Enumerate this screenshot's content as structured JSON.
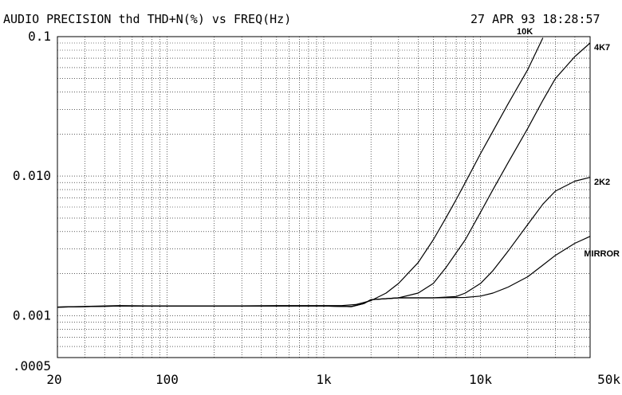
{
  "header": {
    "title": "AUDIO PRECISION thd THD+N(%) vs FREQ(Hz)",
    "timestamp": "27 APR 93 18:28:57"
  },
  "chart_data": {
    "type": "line",
    "title": "AUDIO PRECISION thd THD+N(%) vs FREQ(Hz)",
    "xlabel": "",
    "ylabel": "",
    "x_scale": "log",
    "y_scale": "log",
    "xlim": [
      20,
      50000
    ],
    "ylim": [
      0.0005,
      0.1
    ],
    "grid": true,
    "x_tick_labels": [
      {
        "value": 20,
        "label": "20"
      },
      {
        "value": 100,
        "label": "100"
      },
      {
        "value": 1000,
        "label": "1k"
      },
      {
        "value": 10000,
        "label": "10k"
      },
      {
        "value": 50000,
        "label": "50k"
      }
    ],
    "y_tick_labels": [
      {
        "value": 0.1,
        "label": "0.1"
      },
      {
        "value": 0.01,
        "label": "0.010"
      },
      {
        "value": 0.001,
        "label": "0.001"
      },
      {
        "value": 0.0005,
        "label": ".0005"
      }
    ],
    "series": [
      {
        "name": "10K",
        "x": [
          20,
          50,
          100,
          200,
          500,
          1000,
          1300,
          1600,
          2000,
          2500,
          3000,
          4000,
          5000,
          6000,
          7000,
          8000,
          10000,
          12000,
          15000,
          20000,
          25000
        ],
        "y": [
          0.00115,
          0.00118,
          0.00117,
          0.00117,
          0.00118,
          0.00118,
          0.00118,
          0.0012,
          0.00128,
          0.00145,
          0.0017,
          0.0024,
          0.0035,
          0.005,
          0.0068,
          0.009,
          0.0145,
          0.021,
          0.033,
          0.058,
          0.098
        ]
      },
      {
        "name": "4K7",
        "x": [
          20,
          50,
          100,
          200,
          500,
          1000,
          1500,
          1800,
          2000,
          3000,
          4000,
          5000,
          6000,
          8000,
          10000,
          12000,
          15000,
          20000,
          25000,
          30000,
          40000,
          50000
        ],
        "y": [
          0.00115,
          0.00117,
          0.00117,
          0.00117,
          0.00117,
          0.00117,
          0.00116,
          0.00122,
          0.0013,
          0.00134,
          0.00145,
          0.0017,
          0.0022,
          0.0035,
          0.0055,
          0.008,
          0.0125,
          0.022,
          0.035,
          0.05,
          0.072,
          0.09
        ]
      },
      {
        "name": "2K2",
        "x": [
          20,
          50,
          100,
          200,
          500,
          1000,
          1500,
          1800,
          2000,
          3000,
          5000,
          7000,
          8000,
          10000,
          12000,
          15000,
          20000,
          25000,
          30000,
          40000,
          50000
        ],
        "y": [
          0.00115,
          0.00117,
          0.00117,
          0.00117,
          0.00117,
          0.00117,
          0.00116,
          0.00122,
          0.0013,
          0.00134,
          0.00134,
          0.00137,
          0.00145,
          0.0017,
          0.0021,
          0.0029,
          0.0045,
          0.0063,
          0.0078,
          0.0092,
          0.0098
        ]
      },
      {
        "name": "MIRROR",
        "x": [
          20,
          50,
          100,
          200,
          500,
          1000,
          1500,
          1800,
          2000,
          3000,
          5000,
          8000,
          10000,
          12000,
          15000,
          20000,
          25000,
          30000,
          40000,
          50000
        ],
        "y": [
          0.00115,
          0.00117,
          0.00117,
          0.00117,
          0.00117,
          0.00117,
          0.00116,
          0.00122,
          0.0013,
          0.00134,
          0.00134,
          0.00135,
          0.00138,
          0.00145,
          0.0016,
          0.0019,
          0.0023,
          0.0027,
          0.0033,
          0.0037
        ]
      }
    ]
  }
}
